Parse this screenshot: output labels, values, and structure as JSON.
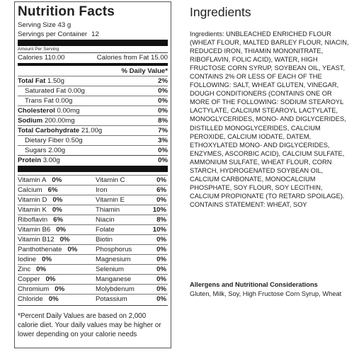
{
  "nutrition": {
    "title": "Nutrition Facts",
    "serving_size": "Serving Size 43 g",
    "servings_per_container_label": "Servings per Container",
    "servings_per_container_value": "12",
    "amount_per_serving": "Amount Per Serving",
    "calories": "Calories 110.00",
    "calories_from_fat": "Calories from Fat 15.00",
    "daily_value_header": "% Daily Value*",
    "nutrients": [
      {
        "label": "Total Fat",
        "amount": "1.50g",
        "dv": "2%",
        "bold": true,
        "indent": false
      },
      {
        "label": "Saturated Fat",
        "amount": "0.00g",
        "dv": "0%",
        "bold": false,
        "indent": true
      },
      {
        "label": "Trans Fat",
        "amount": "0.00g",
        "dv": "0%",
        "bold": false,
        "indent": true
      },
      {
        "label": "Cholesterol",
        "amount": "0.00mg",
        "dv": "0%",
        "bold": true,
        "indent": false
      },
      {
        "label": "Sodium",
        "amount": "200.00mg",
        "dv": "8%",
        "bold": true,
        "indent": false
      },
      {
        "label": "Total Carbohydrate",
        "amount": "21.00g",
        "dv": "7%",
        "bold": true,
        "indent": false
      },
      {
        "label": "Dietary Fiber",
        "amount": "0.50g",
        "dv": "3%",
        "bold": false,
        "indent": true
      },
      {
        "label": "Sugars",
        "amount": "2.00g",
        "dv": "0%",
        "bold": false,
        "indent": true
      }
    ],
    "protein": {
      "label": "Protein",
      "amount": "3.00g",
      "dv": "0%"
    },
    "vitamins": [
      {
        "left_label": "Vitamin A",
        "left_dv": "0%",
        "right_label": "Vitamin C",
        "right_dv": "0%"
      },
      {
        "left_label": "Calcium",
        "left_dv": "6%",
        "right_label": "Iron",
        "right_dv": "6%"
      },
      {
        "left_label": "Vitamin D",
        "left_dv": "0%",
        "right_label": "Vitamin E",
        "right_dv": "0%"
      },
      {
        "left_label": "Vitamin K",
        "left_dv": "0%",
        "right_label": "Thiamin",
        "right_dv": "10%"
      },
      {
        "left_label": "Riboflavin",
        "left_dv": "6%",
        "right_label": "Niacin",
        "right_dv": "8%"
      },
      {
        "left_label": "Vitamin B6",
        "left_dv": "0%",
        "right_label": "Folate",
        "right_dv": "10%"
      },
      {
        "left_label": "Vitamin B12",
        "left_dv": "0%",
        "right_label": "Biotin",
        "right_dv": "0%"
      },
      {
        "left_label": "Panthothenate",
        "left_dv": "0%",
        "right_label": "Phosphorus",
        "right_dv": "0%"
      },
      {
        "left_label": "Iodine",
        "left_dv": "0%",
        "right_label": "Magnesium",
        "right_dv": "0%"
      },
      {
        "left_label": "Zinc",
        "left_dv": "0%",
        "right_label": "Selenium",
        "right_dv": "0%"
      },
      {
        "left_label": "Copper",
        "left_dv": "0%",
        "right_label": "Manganese",
        "right_dv": "0%"
      },
      {
        "left_label": "Chromium",
        "left_dv": "0%",
        "right_label": "Molybdenum",
        "right_dv": "0%"
      },
      {
        "left_label": "Chloride",
        "left_dv": "0%",
        "right_label": "Potassium",
        "right_dv": "0%"
      }
    ],
    "footnote": "*Percent Daily Values are based on 2,000 calorie diet. Your daily values may be higher or lower depending on your calorie needs"
  },
  "ingredients": {
    "title": "Ingredients",
    "text": "Ingredients:  UNBLEACHED ENRICHED FLOUR (WHEAT FLOUR, MALTED BARLEY FLOUR, NIACIN, REDUCED IRON, THIAMIN MONONITRATE, RIBOFLAVIN, FOLIC ACID), WATER, HIGH FRUCTOSE CORN SYRUP, SOYBEAN OIL, YEAST, CONTAINS 2% OR LESS OF EACH OF THE FOLLOWING: SALT, WHEAT GLUTEN, VINEGAR, DOUGH CONDITIONERS (CONTAINS ONE OR MORE OF THE FOLLOWING: SODIUM STEAROYL LACTYLATE, CALCIUM STEAROYL LACTYLATE, MONOGLYCERIDES, MONO- AND DIGLYCERIDES, DISTILLED MONOGLYCERIDES, CALCIUM PEROXIDE, CALCIUM IODATE, DATEM, ETHOXYLATED MONO- AND DIGLYCERIDES, ENZYMES, ASCORBIC ACID), CALCIUM SULFATE, AMMONIUM SULFATE, WHEAT FLOUR, CORN STARCH, HYDROGENATED SOYBEAN OIL, CALCIUM CARBONATE, MONOCALCIUM PHOSPHATE, SOY FLOUR, SOY LECITHIN, CALCIUM PROPIONATE (TO RETARD SPOILAGE). CONTAINS STATEMENT: WHEAT, SOY"
  },
  "allergens": {
    "title": "Allergens and Nutritional Considerations",
    "text": "Gluten, Milk, Soy, High Fructose Corn Syrup, Wheat"
  }
}
